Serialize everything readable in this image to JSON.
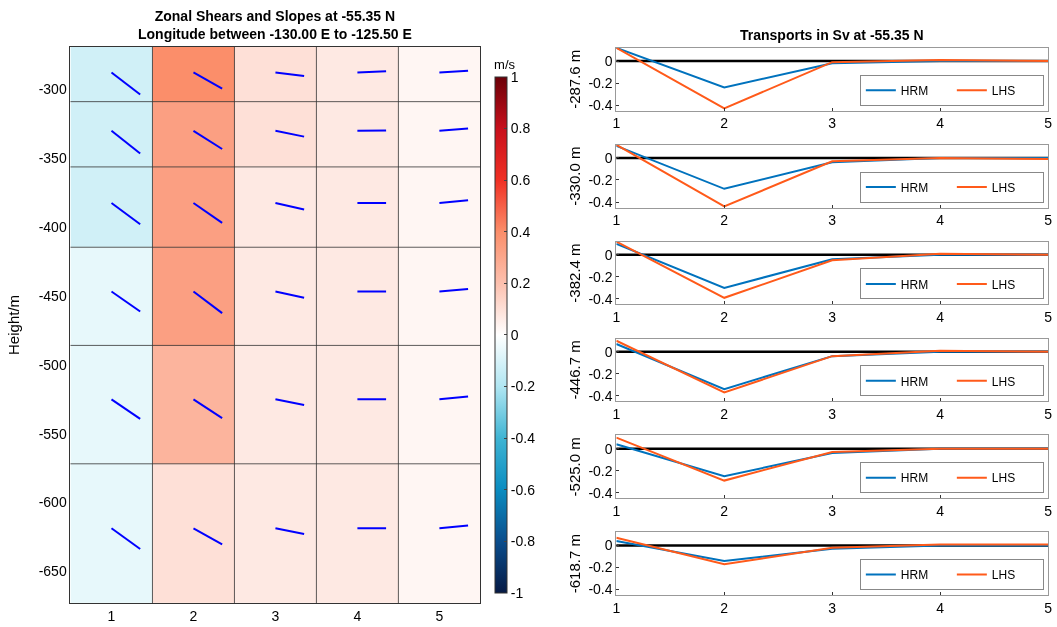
{
  "chart_data": [
    {
      "type": "heatmap",
      "title": "Zonal Shears and Slopes at -55.35 N\nLongitude between -130.00 E to -125.50 E",
      "ylabel": "Height/m",
      "clabel": "m/s",
      "x": [
        1,
        2,
        3,
        4,
        5
      ],
      "xlim": [
        0.5,
        5.5
      ],
      "xticks": [
        1,
        2,
        3,
        4,
        5
      ],
      "y": [
        -287.6,
        -330.0,
        -382.4,
        -446.7,
        -525.0,
        -618.7
      ],
      "cells": [
        [
          -0.12,
          0.4,
          0.1,
          0.07,
          0.03
        ],
        [
          -0.12,
          0.33,
          0.1,
          0.07,
          0.03
        ],
        [
          -0.12,
          0.33,
          0.07,
          0.07,
          0.03
        ],
        [
          -0.06,
          0.33,
          0.07,
          0.07,
          0.03
        ],
        [
          -0.06,
          0.25,
          0.07,
          0.07,
          0.03
        ],
        [
          -0.06,
          0.1,
          0.07,
          0.07,
          0.03
        ]
      ],
      "clim": [
        -1,
        1
      ],
      "cticks": [
        -1,
        -0.8,
        -0.6,
        -0.4,
        -0.2,
        0,
        0.2,
        0.4,
        0.6,
        0.8,
        1
      ],
      "ylim": [
        -673,
        -269
      ],
      "yticks": [
        -650,
        -600,
        -550,
        -500,
        -450,
        -400,
        -350,
        -300
      ],
      "series": [
        {
          "type": "line",
          "color": "#0000ff",
          "x": [
            1,
            1.35
          ],
          "values": [
            -287.6,
            -303.6
          ]
        },
        {
          "type": "line",
          "color": "#0000ff",
          "x": [
            2,
            2.35
          ],
          "values": [
            -287.6,
            -299.3
          ]
        },
        {
          "type": "line",
          "color": "#0000ff",
          "x": [
            3,
            3.35
          ],
          "values": [
            -287.6,
            -290.1
          ]
        },
        {
          "type": "line",
          "color": "#0000ff",
          "x": [
            4,
            4.35
          ],
          "values": [
            -287.6,
            -286.8
          ]
        },
        {
          "type": "line",
          "color": "#0000ff",
          "x": [
            5,
            5.35
          ],
          "values": [
            -287.6,
            -286.3
          ]
        },
        {
          "type": "line",
          "color": "#0000ff",
          "x": [
            1,
            1.35
          ],
          "values": [
            -330.0,
            -346.5
          ]
        },
        {
          "type": "line",
          "color": "#0000ff",
          "x": [
            2,
            2.35
          ],
          "values": [
            -330.0,
            -343.2
          ]
        },
        {
          "type": "line",
          "color": "#0000ff",
          "x": [
            3,
            3.35
          ],
          "values": [
            -330.0,
            -334.2
          ]
        },
        {
          "type": "line",
          "color": "#0000ff",
          "x": [
            4,
            4.35
          ],
          "values": [
            -330.0,
            -329.8
          ]
        },
        {
          "type": "line",
          "color": "#0000ff",
          "x": [
            5,
            5.35
          ],
          "values": [
            -330.0,
            -328.3
          ]
        },
        {
          "type": "line",
          "color": "#0000ff",
          "x": [
            1,
            1.35
          ],
          "values": [
            -382.4,
            -397.9
          ]
        },
        {
          "type": "line",
          "color": "#0000ff",
          "x": [
            2,
            2.35
          ],
          "values": [
            -382.4,
            -396.9
          ]
        },
        {
          "type": "line",
          "color": "#0000ff",
          "x": [
            3,
            3.35
          ],
          "values": [
            -382.4,
            -387.1
          ]
        },
        {
          "type": "line",
          "color": "#0000ff",
          "x": [
            4,
            4.35
          ],
          "values": [
            -382.4,
            -382.4
          ]
        },
        {
          "type": "line",
          "color": "#0000ff",
          "x": [
            5,
            5.35
          ],
          "values": [
            -382.4,
            -380.4
          ]
        },
        {
          "type": "line",
          "color": "#0000ff",
          "x": [
            1,
            1.35
          ],
          "values": [
            -446.7,
            -461.2
          ]
        },
        {
          "type": "line",
          "color": "#0000ff",
          "x": [
            2,
            2.35
          ],
          "values": [
            -446.7,
            -462.4
          ]
        },
        {
          "type": "line",
          "color": "#0000ff",
          "x": [
            3,
            3.35
          ],
          "values": [
            -446.7,
            -451.2
          ]
        },
        {
          "type": "line",
          "color": "#0000ff",
          "x": [
            4,
            4.35
          ],
          "values": [
            -446.7,
            -446.7
          ]
        },
        {
          "type": "line",
          "color": "#0000ff",
          "x": [
            5,
            5.35
          ],
          "values": [
            -446.7,
            -444.9
          ]
        },
        {
          "type": "line",
          "color": "#0000ff",
          "x": [
            1,
            1.35
          ],
          "values": [
            -525.0,
            -539.2
          ]
        },
        {
          "type": "line",
          "color": "#0000ff",
          "x": [
            2,
            2.35
          ],
          "values": [
            -525.0,
            -538.7
          ]
        },
        {
          "type": "line",
          "color": "#0000ff",
          "x": [
            3,
            3.35
          ],
          "values": [
            -525.0,
            -529.2
          ]
        },
        {
          "type": "line",
          "color": "#0000ff",
          "x": [
            4,
            4.35
          ],
          "values": [
            -525.0,
            -525.0
          ]
        },
        {
          "type": "line",
          "color": "#0000ff",
          "x": [
            5,
            5.35
          ],
          "values": [
            -525.0,
            -523.0
          ]
        },
        {
          "type": "line",
          "color": "#0000ff",
          "x": [
            1,
            1.35
          ],
          "values": [
            -618.7,
            -633.7
          ]
        },
        {
          "type": "line",
          "color": "#0000ff",
          "x": [
            2,
            2.35
          ],
          "values": [
            -618.7,
            -630.4
          ]
        },
        {
          "type": "line",
          "color": "#0000ff",
          "x": [
            3,
            3.35
          ],
          "values": [
            -618.7,
            -622.9
          ]
        },
        {
          "type": "line",
          "color": "#0000ff",
          "x": [
            4,
            4.35
          ],
          "values": [
            -618.7,
            -618.7
          ]
        },
        {
          "type": "line",
          "color": "#0000ff",
          "x": [
            5,
            5.35
          ],
          "values": [
            -618.7,
            -616.7
          ]
        }
      ]
    },
    {
      "type": "line",
      "title": "Transports in Sv at -55.35 N",
      "ylabel": "-287.6 m",
      "x": [
        1,
        2,
        3,
        4,
        5
      ],
      "xlim": [
        1,
        5
      ],
      "xticks": [
        1,
        2,
        3,
        4,
        5
      ],
      "ylim": [
        -0.45,
        0.12
      ],
      "yticks": [
        -0.4,
        -0.2,
        0
      ],
      "legend": "bottom right",
      "ref_lines": [
        {
          "axis": "y",
          "value": 0,
          "color": "#000000"
        }
      ],
      "series": [
        {
          "name": "HRM",
          "color": "#0072bd",
          "values": [
            0.12,
            -0.24,
            -0.02,
            0.0,
            0.0
          ]
        },
        {
          "name": "LHS",
          "color": "#ff5a1a",
          "values": [
            0.12,
            -0.43,
            -0.01,
            0.01,
            0.0
          ]
        }
      ]
    },
    {
      "type": "line",
      "ylabel": "-330.0 m",
      "x": [
        1,
        2,
        3,
        4,
        5
      ],
      "xlim": [
        1,
        5
      ],
      "xticks": [
        1,
        2,
        3,
        4,
        5
      ],
      "ylim": [
        -0.45,
        0.12
      ],
      "yticks": [
        -0.4,
        -0.2,
        0
      ],
      "legend": "bottom right",
      "ref_lines": [
        {
          "axis": "y",
          "value": 0,
          "color": "#000000"
        }
      ],
      "series": [
        {
          "name": "HRM",
          "color": "#0072bd",
          "values": [
            0.11,
            -0.28,
            -0.04,
            0.0,
            0.0
          ]
        },
        {
          "name": "LHS",
          "color": "#ff5a1a",
          "values": [
            0.12,
            -0.44,
            -0.03,
            0.0,
            -0.01
          ]
        }
      ]
    },
    {
      "type": "line",
      "ylabel": "-382.4 m",
      "x": [
        1,
        2,
        3,
        4,
        5
      ],
      "xlim": [
        1,
        5
      ],
      "xticks": [
        1,
        2,
        3,
        4,
        5
      ],
      "ylim": [
        -0.45,
        0.12
      ],
      "yticks": [
        -0.4,
        -0.2,
        0
      ],
      "legend": "bottom right",
      "ref_lines": [
        {
          "axis": "y",
          "value": 0,
          "color": "#000000"
        }
      ],
      "series": [
        {
          "name": "HRM",
          "color": "#0072bd",
          "values": [
            0.1,
            -0.3,
            -0.04,
            0.0,
            0.0
          ]
        },
        {
          "name": "LHS",
          "color": "#ff5a1a",
          "values": [
            0.12,
            -0.39,
            -0.05,
            0.01,
            0.0
          ]
        }
      ]
    },
    {
      "type": "line",
      "ylabel": "-446.7 m",
      "x": [
        1,
        2,
        3,
        4,
        5
      ],
      "xlim": [
        1,
        5
      ],
      "xticks": [
        1,
        2,
        3,
        4,
        5
      ],
      "ylim": [
        -0.45,
        0.12
      ],
      "yticks": [
        -0.4,
        -0.2,
        0
      ],
      "legend": "bottom right",
      "ref_lines": [
        {
          "axis": "y",
          "value": 0,
          "color": "#000000"
        }
      ],
      "series": [
        {
          "name": "HRM",
          "color": "#0072bd",
          "values": [
            0.07,
            -0.34,
            -0.04,
            0.0,
            0.0
          ]
        },
        {
          "name": "LHS",
          "color": "#ff5a1a",
          "values": [
            0.1,
            -0.37,
            -0.04,
            0.01,
            0.0
          ]
        }
      ]
    },
    {
      "type": "line",
      "ylabel": "-525.0 m",
      "x": [
        1,
        2,
        3,
        4,
        5
      ],
      "xlim": [
        1,
        5
      ],
      "xticks": [
        1,
        2,
        3,
        4,
        5
      ],
      "ylim": [
        -0.45,
        0.12
      ],
      "yticks": [
        -0.4,
        -0.2,
        0
      ],
      "legend": "bottom right",
      "ref_lines": [
        {
          "axis": "y",
          "value": 0,
          "color": "#000000"
        }
      ],
      "series": [
        {
          "name": "HRM",
          "color": "#0072bd",
          "values": [
            0.04,
            -0.25,
            -0.04,
            0.0,
            0.0
          ]
        },
        {
          "name": "LHS",
          "color": "#ff5a1a",
          "values": [
            0.1,
            -0.29,
            -0.03,
            0.0,
            0.0
          ]
        }
      ]
    },
    {
      "type": "line",
      "ylabel": "-618.7 m",
      "x": [
        1,
        2,
        3,
        4,
        5
      ],
      "xlim": [
        1,
        5
      ],
      "xticks": [
        1,
        2,
        3,
        4,
        5
      ],
      "ylim": [
        -0.45,
        0.12
      ],
      "yticks": [
        -0.4,
        -0.2,
        0
      ],
      "legend": "bottom right",
      "ref_lines": [
        {
          "axis": "y",
          "value": 0,
          "color": "#000000"
        }
      ],
      "series": [
        {
          "name": "HRM",
          "color": "#0072bd",
          "values": [
            0.04,
            -0.14,
            -0.03,
            0.0,
            0.0
          ]
        },
        {
          "name": "LHS",
          "color": "#ff5a1a",
          "values": [
            0.07,
            -0.17,
            -0.02,
            0.01,
            0.01
          ]
        }
      ]
    }
  ]
}
